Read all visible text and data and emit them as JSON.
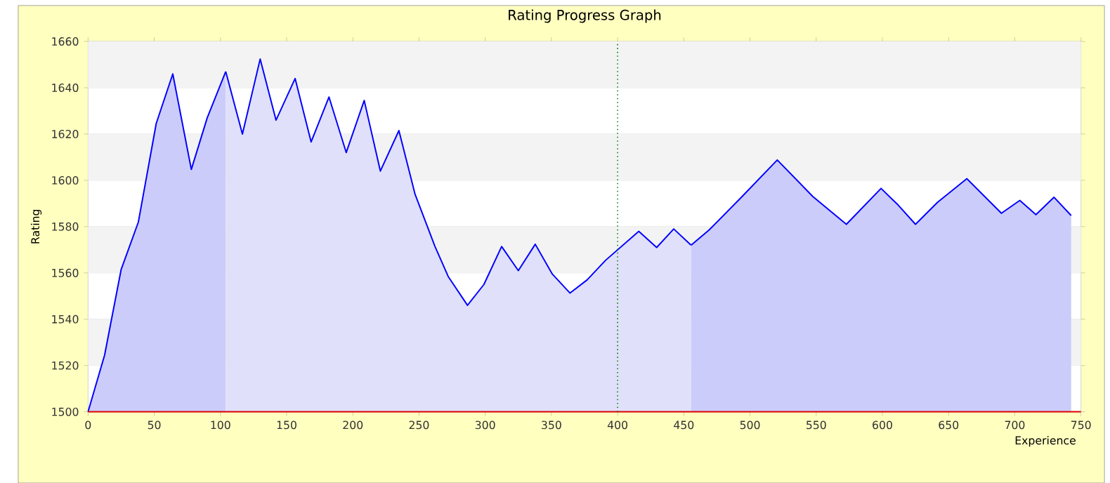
{
  "chart_data": {
    "type": "area",
    "title": "Rating Progress Graph",
    "xlabel": "Experience",
    "ylabel": "Rating",
    "xlim": [
      0,
      750
    ],
    "xticks": [
      0,
      50,
      100,
      150,
      200,
      250,
      300,
      350,
      400,
      450,
      500,
      550,
      600,
      650,
      700,
      750
    ],
    "ylim": [
      1500,
      1660
    ],
    "yticks": [
      1500,
      1520,
      1540,
      1560,
      1580,
      1600,
      1620,
      1640,
      1660
    ],
    "grid": "y",
    "line_style": "solid",
    "marker": "none",
    "series": [
      {
        "color": "#ccccfa",
        "x": [
          0,
          12.5,
          25,
          38,
          51.5,
          64,
          78,
          90,
          104
        ],
        "values": [
          1500,
          1524.5,
          1561.5,
          1582,
          1624.6,
          1646,
          1604.7,
          1627,
          1647
        ]
      },
      {
        "color": "#e0e0fa",
        "x": [
          104,
          116.6,
          130,
          142,
          156.4,
          168.5,
          182,
          195,
          208.6,
          220.8,
          234.8,
          247,
          262,
          272,
          286.6,
          299,
          312.4,
          325,
          337.8,
          350.7,
          364,
          377,
          391,
          416,
          429.5,
          442.4,
          455.5
        ],
        "values": [
          1647,
          1620,
          1652.4,
          1626,
          1644,
          1616.6,
          1636,
          1612,
          1634.5,
          1604,
          1621.5,
          1594,
          1571.5,
          1558.5,
          1546,
          1555,
          1571.4,
          1561,
          1572.4,
          1559.5,
          1551.3,
          1557,
          1565.5,
          1578,
          1571,
          1579,
          1572
        ]
      },
      {
        "color": "#ccccfa",
        "x": [
          455.5,
          469,
          493.5,
          520.6,
          547.5,
          572.8,
          599,
          611.8,
          625,
          641.6,
          663.8,
          689.9,
          703.8,
          716,
          729.6,
          742.6
        ],
        "values": [
          1572,
          1578.5,
          1592.7,
          1608.8,
          1593,
          1581,
          1596.5,
          1589.4,
          1581,
          1590.5,
          1600.7,
          1585.8,
          1591.3,
          1585.2,
          1592.7,
          1584.8
        ]
      }
    ],
    "ref_lines": [
      {
        "axis": "x",
        "value": 400,
        "color": "#008000",
        "line_style": "dotted"
      }
    ]
  }
}
